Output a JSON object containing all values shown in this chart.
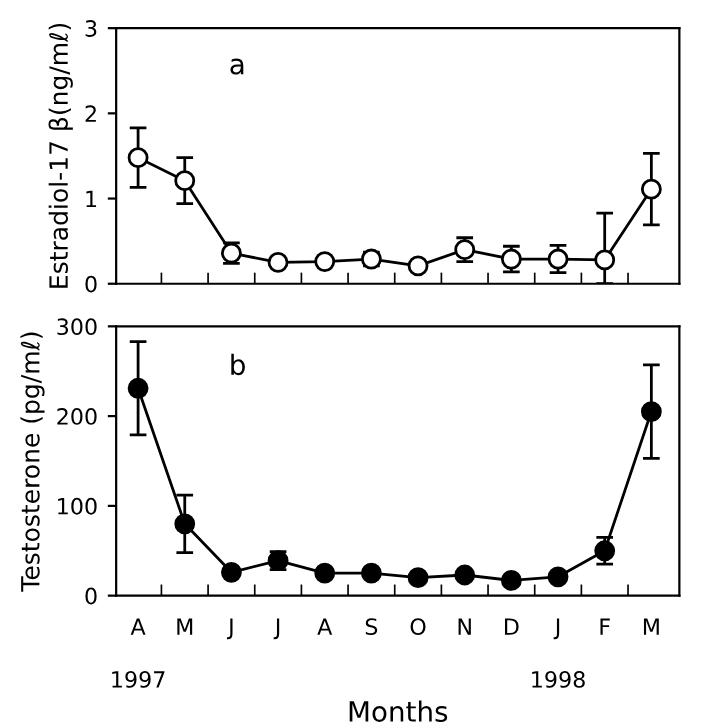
{
  "chart_data": [
    {
      "type": "line",
      "ylabel": "Estradiol-17 β(ng/mℓ)",
      "annotations": [
        "a"
      ],
      "categories": [
        null,
        null,
        null,
        null,
        null,
        null,
        null,
        null,
        null,
        null,
        null,
        null
      ],
      "series": [
        {
          "color": "#000000",
          "values": [
            1.48,
            1.21,
            0.36,
            0.25,
            0.26,
            0.29,
            0.21,
            0.4,
            0.29,
            0.29,
            0.28,
            1.11
          ],
          "errors": [
            0.35,
            0.27,
            0.12,
            null,
            null,
            0.08,
            null,
            0.14,
            0.15,
            0.16,
            [
              0,
              0.83
            ],
            0.42
          ]
        }
      ],
      "ylim": [
        0,
        3
      ],
      "yticks": [
        0,
        1,
        2,
        3
      ],
      "marker": "circle",
      "line_style": "solid",
      "grid": false,
      "legend": false
    },
    {
      "type": "line",
      "ylabel": "Testosterone (pg/mℓ)",
      "xlabel": "Months",
      "annotations": [
        "b",
        "1997",
        "1998"
      ],
      "categories": [
        "A",
        "M",
        "J",
        "J",
        "A",
        "S",
        "O",
        "N",
        "D",
        "J",
        "F",
        "M"
      ],
      "series": [
        {
          "color": "#000000",
          "values": [
            231,
            80,
            26,
            39,
            25,
            25,
            20,
            23,
            17,
            21,
            50,
            205
          ],
          "errors": [
            52,
            32,
            null,
            10,
            null,
            null,
            null,
            null,
            null,
            null,
            15,
            52
          ]
        }
      ],
      "ylim": [
        0,
        300
      ],
      "yticks": [
        0,
        100,
        200,
        300
      ],
      "marker": "circle",
      "line_style": "solid",
      "grid": false,
      "legend": false
    }
  ]
}
